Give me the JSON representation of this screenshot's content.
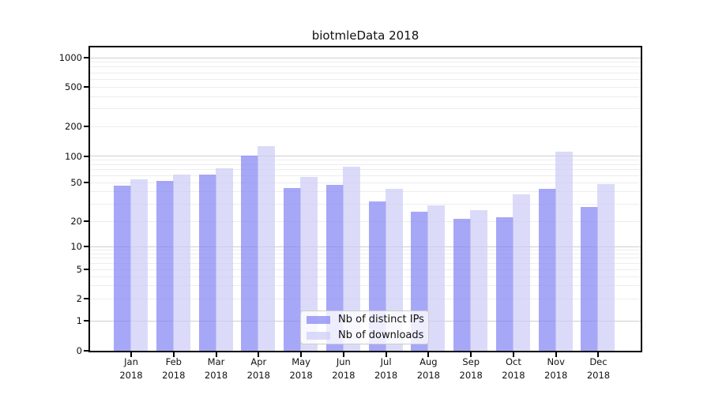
{
  "title": "biotmleData 2018",
  "legend": {
    "items": [
      {
        "id": "distinct-ips",
        "label": "Nb of distinct IPs",
        "color": "rgba(130,130,243,0.7)"
      },
      {
        "id": "downloads",
        "label": "Nb of downloads",
        "color": "rgba(204,204,247,0.7)"
      }
    ]
  },
  "axis": {
    "ytick_values": [
      0,
      1,
      2,
      5,
      10,
      20,
      50,
      100,
      200,
      500,
      1000
    ],
    "x_months": [
      "Jan",
      "Feb",
      "Mar",
      "Apr",
      "May",
      "Jun",
      "Jul",
      "Aug",
      "Sep",
      "Oct",
      "Nov",
      "Dec"
    ],
    "x_year": "2018"
  },
  "chart_data": {
    "type": "bar",
    "title": "biotmleData 2018",
    "categories": [
      "Jan 2018",
      "Feb 2018",
      "Mar 2018",
      "Apr 2018",
      "May 2018",
      "Jun 2018",
      "Jul 2018",
      "Aug 2018",
      "Sep 2018",
      "Oct 2018",
      "Nov 2018",
      "Dec 2018"
    ],
    "series": [
      {
        "name": "Nb of distinct IPs",
        "values": [
          46,
          52,
          61,
          101,
          44,
          47,
          32,
          25,
          21,
          22,
          43,
          28
        ]
      },
      {
        "name": "Nb of downloads",
        "values": [
          54,
          62,
          72,
          127,
          58,
          75,
          43,
          29,
          26,
          38,
          110,
          48
        ]
      }
    ],
    "yscale": "symlog",
    "yticks": [
      0,
      1,
      2,
      5,
      10,
      20,
      50,
      100,
      200,
      500,
      1000
    ],
    "ylim": [
      0,
      1300
    ],
    "grid": "on",
    "legend_position": "lower center",
    "colors": {
      "distinct_ips": "rgba(130,130,243,0.7)",
      "downloads": "rgba(204,204,247,0.7)",
      "grid_minor": "#ededed",
      "grid_major": "#cfcfcf",
      "spine": "#000000"
    }
  }
}
